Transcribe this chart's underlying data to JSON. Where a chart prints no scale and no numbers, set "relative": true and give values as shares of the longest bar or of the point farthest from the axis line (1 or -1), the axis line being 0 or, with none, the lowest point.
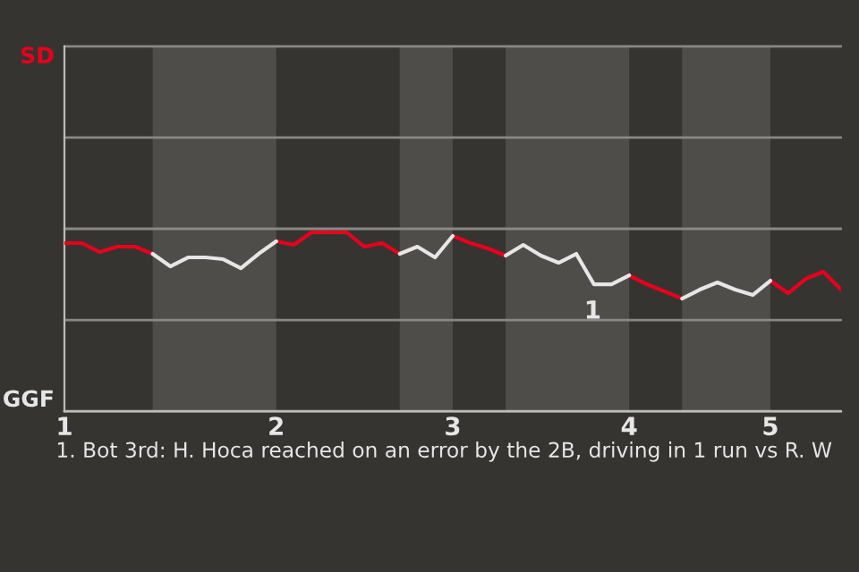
{
  "chart_data": {
    "type": "line",
    "relative": true,
    "categories": [
      "1",
      null,
      null,
      null,
      null,
      null,
      null,
      null,
      null,
      null,
      null,
      null,
      "2",
      null,
      null,
      null,
      null,
      null,
      null,
      null,
      null,
      null,
      "3",
      null,
      null,
      null,
      null,
      null,
      null,
      null,
      null,
      null,
      "4",
      null,
      null,
      null,
      null,
      null,
      null,
      null,
      "5",
      null,
      null,
      null,
      null
    ],
    "series": [
      {
        "color": "#e8001c",
        "values": [
          0.94,
          0.94,
          0.89,
          0.92,
          0.92,
          0.88,
          null,
          null,
          null,
          null,
          null,
          null,
          0.95,
          0.93,
          1,
          1,
          1,
          0.92,
          0.94,
          0.88,
          null,
          null,
          0.98,
          0.94,
          0.91,
          0.87,
          null,
          null,
          null,
          null,
          null,
          null,
          0.76,
          0.71,
          0.67,
          0.63,
          null,
          null,
          null,
          null,
          0.73,
          0.66,
          0.74,
          0.78,
          0.68
        ]
      },
      {
        "color": "#e6e6e6",
        "values": [
          null,
          null,
          null,
          null,
          null,
          0.88,
          0.81,
          0.86,
          0.86,
          0.85,
          0.8,
          0.88,
          0.95,
          null,
          null,
          null,
          null,
          null,
          null,
          0.88,
          0.92,
          0.86,
          0.98,
          null,
          null,
          0.87,
          0.93,
          0.87,
          0.83,
          0.88,
          0.71,
          0.71,
          0.76,
          null,
          null,
          0.63,
          0.68,
          0.72,
          0.68,
          0.65,
          0.73,
          null,
          null,
          null,
          null
        ]
      }
    ],
    "ref_lines": [
      {
        "axis": "y",
        "value": 0,
        "label": "GGF",
        "color": "#bdbbb8"
      },
      {
        "axis": "y",
        "value": 0.51,
        "color": "#8a8885"
      },
      {
        "axis": "y",
        "value": 1.02,
        "color": "#8a8885"
      },
      {
        "axis": "y",
        "value": 1.53,
        "color": "#8a8885"
      },
      {
        "axis": "y",
        "value": 2.04,
        "label": "SD",
        "color": "#8a8885"
      }
    ],
    "annotations": [
      "1",
      "1. Bot 3rd: H. Hoca reached on an error by the 2B, driving in 1 run vs R. W"
    ]
  }
}
